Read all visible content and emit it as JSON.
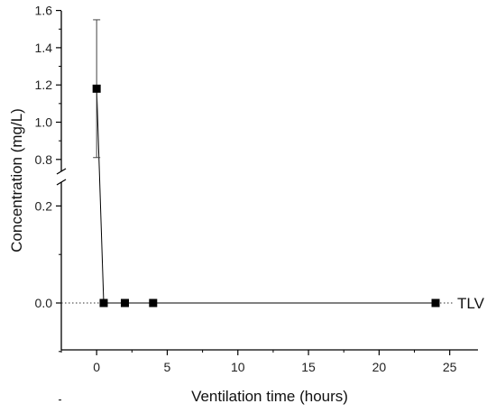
{
  "chart_data": {
    "type": "scatter",
    "title": "",
    "xlabel": "Ventilation time (hours)",
    "ylabel": "Concentration (mg/L)",
    "xlim": [
      -2.5,
      27
    ],
    "x_ticks": [
      0,
      5,
      10,
      15,
      20,
      25
    ],
    "y_ticks_lower": [
      0.0,
      0.2
    ],
    "y_ticks_upper": [
      0.8,
      1.0,
      1.2,
      1.4,
      1.6
    ],
    "y_break": [
      0.3,
      0.75
    ],
    "grid": false,
    "series": [
      {
        "x": [
          0,
          0.5,
          2,
          4,
          24
        ],
        "y": [
          1.18,
          0,
          0,
          0,
          0
        ],
        "error": [
          0.37,
          0,
          0,
          0,
          0
        ],
        "color": "#000000"
      }
    ],
    "reference_line": {
      "label": "TLV",
      "y": 0,
      "style": "dotted"
    }
  }
}
